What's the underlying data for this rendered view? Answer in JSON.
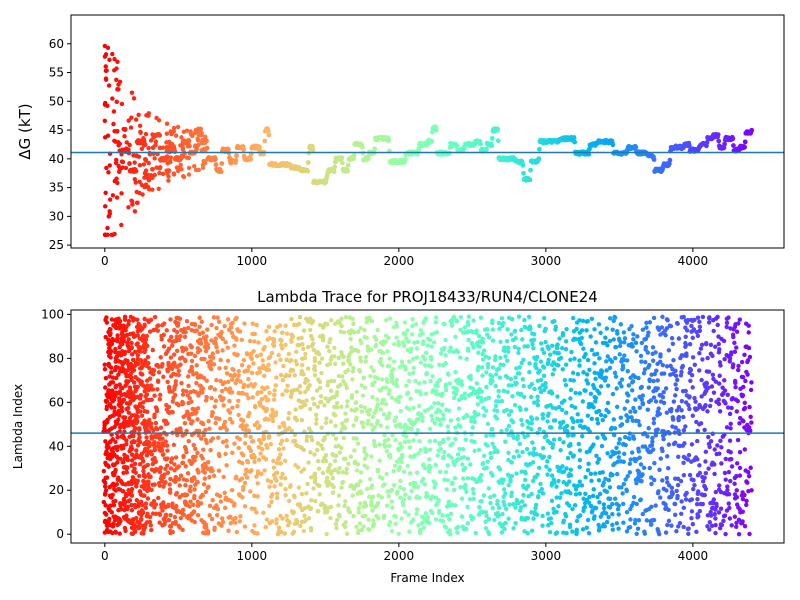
{
  "chart_data": [
    {
      "type": "scatter",
      "title": "",
      "xlabel": "",
      "ylabel": "ΔG (kT)",
      "xlim": [
        -230,
        4620
      ],
      "ylim": [
        24.5,
        65
      ],
      "x_ticks": [
        0,
        1000,
        2000,
        3000,
        4000
      ],
      "y_ticks": [
        25,
        30,
        35,
        40,
        45,
        50,
        55,
        60
      ],
      "hline": 41.1,
      "hline_color": "#1f77b4",
      "colormap": "rainbow (red at frame 0 → violet at last frame)",
      "max_frame": 4400,
      "grid": false,
      "trace_keypoints": [
        [
          120,
          41.5
        ],
        [
          170,
          38
        ],
        [
          220,
          43
        ],
        [
          280,
          37
        ],
        [
          330,
          44
        ],
        [
          380,
          40
        ],
        [
          430,
          42
        ],
        [
          480,
          40
        ],
        [
          530,
          43
        ],
        [
          580,
          41
        ],
        [
          620,
          45
        ],
        [
          660,
          43
        ],
        [
          700,
          40
        ],
        [
          760,
          38
        ],
        [
          800,
          41.5
        ],
        [
          850,
          39.5
        ],
        [
          900,
          42
        ],
        [
          950,
          40
        ],
        [
          1000,
          42
        ],
        [
          1060,
          41
        ],
        [
          1090,
          45
        ],
        [
          1120,
          39
        ],
        [
          1200,
          39
        ],
        [
          1270,
          38.5
        ],
        [
          1330,
          38
        ],
        [
          1390,
          42
        ],
        [
          1420,
          36
        ],
        [
          1520,
          38
        ],
        [
          1570,
          40
        ],
        [
          1620,
          38
        ],
        [
          1660,
          40
        ],
        [
          1700,
          42.5
        ],
        [
          1760,
          40
        ],
        [
          1800,
          41
        ],
        [
          1840,
          43.5
        ],
        [
          1880,
          43.5
        ],
        [
          1940,
          39.5
        ],
        [
          2000,
          39.5
        ],
        [
          2050,
          41
        ],
        [
          2100,
          41
        ],
        [
          2140,
          42.5
        ],
        [
          2200,
          43
        ],
        [
          2230,
          45.5
        ],
        [
          2260,
          41
        ],
        [
          2320,
          41
        ],
        [
          2350,
          42.5
        ],
        [
          2400,
          41.5
        ],
        [
          2450,
          42.5
        ],
        [
          2520,
          43
        ],
        [
          2560,
          41.5
        ],
        [
          2600,
          42.5
        ],
        [
          2640,
          45
        ],
        [
          2680,
          40
        ],
        [
          2740,
          40
        ],
        [
          2800,
          39.5
        ],
        [
          2850,
          36.5
        ],
        [
          2900,
          39.5
        ],
        [
          2960,
          43
        ],
        [
          3100,
          43.5
        ],
        [
          3160,
          43.5
        ],
        [
          3200,
          41
        ],
        [
          3260,
          41
        ],
        [
          3300,
          42.5
        ],
        [
          3360,
          43
        ],
        [
          3420,
          43
        ],
        [
          3460,
          41
        ],
        [
          3560,
          42
        ],
        [
          3620,
          41
        ],
        [
          3700,
          40.5
        ],
        [
          3740,
          38
        ],
        [
          3800,
          39
        ],
        [
          3850,
          42
        ],
        [
          3950,
          42.5
        ],
        [
          3980,
          41.5
        ],
        [
          4050,
          42.5
        ],
        [
          4100,
          43.5
        ],
        [
          4140,
          44
        ],
        [
          4180,
          42
        ],
        [
          4220,
          43.5
        ],
        [
          4280,
          41.5
        ],
        [
          4320,
          42
        ],
        [
          4360,
          44.5
        ],
        [
          4400,
          45
        ]
      ],
      "early_scatter": {
        "x_range": [
          0,
          700
        ],
        "center": 41,
        "initial_spread": 20,
        "points": 240
      }
    },
    {
      "type": "scatter",
      "title": "Lambda Trace for PROJ18433/RUN4/CLONE24",
      "xlabel": "Frame Index",
      "ylabel": "Lambda Index",
      "xlim": [
        -230,
        4620
      ],
      "ylim": [
        -4,
        102
      ],
      "x_ticks": [
        0,
        1000,
        2000,
        3000,
        4000
      ],
      "y_ticks": [
        0,
        20,
        40,
        60,
        80,
        100
      ],
      "hline": 46,
      "hline_color": "#1f77b4",
      "colormap": "rainbow (red at frame 0 → violet at last frame)",
      "max_frame": 4400,
      "lambda_range": [
        0,
        99
      ],
      "grid": false
    }
  ]
}
